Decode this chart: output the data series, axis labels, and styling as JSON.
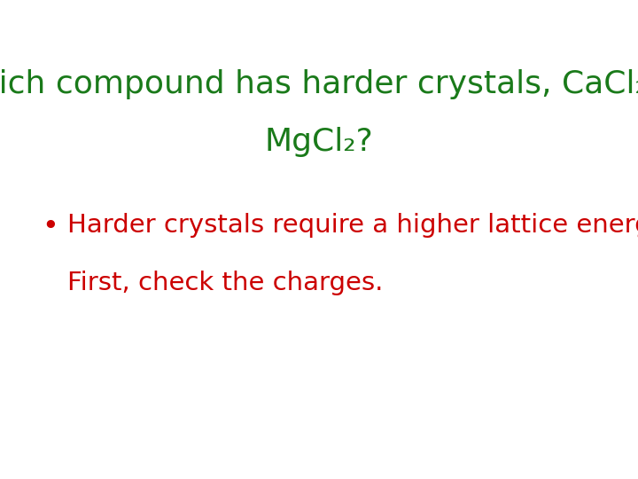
{
  "title_color": "#1a7a1a",
  "bullet_color": "#cc0000",
  "background_color": "#ffffff",
  "font_size_title": 26,
  "font_size_bullet": 21,
  "font_size_sub": 17
}
